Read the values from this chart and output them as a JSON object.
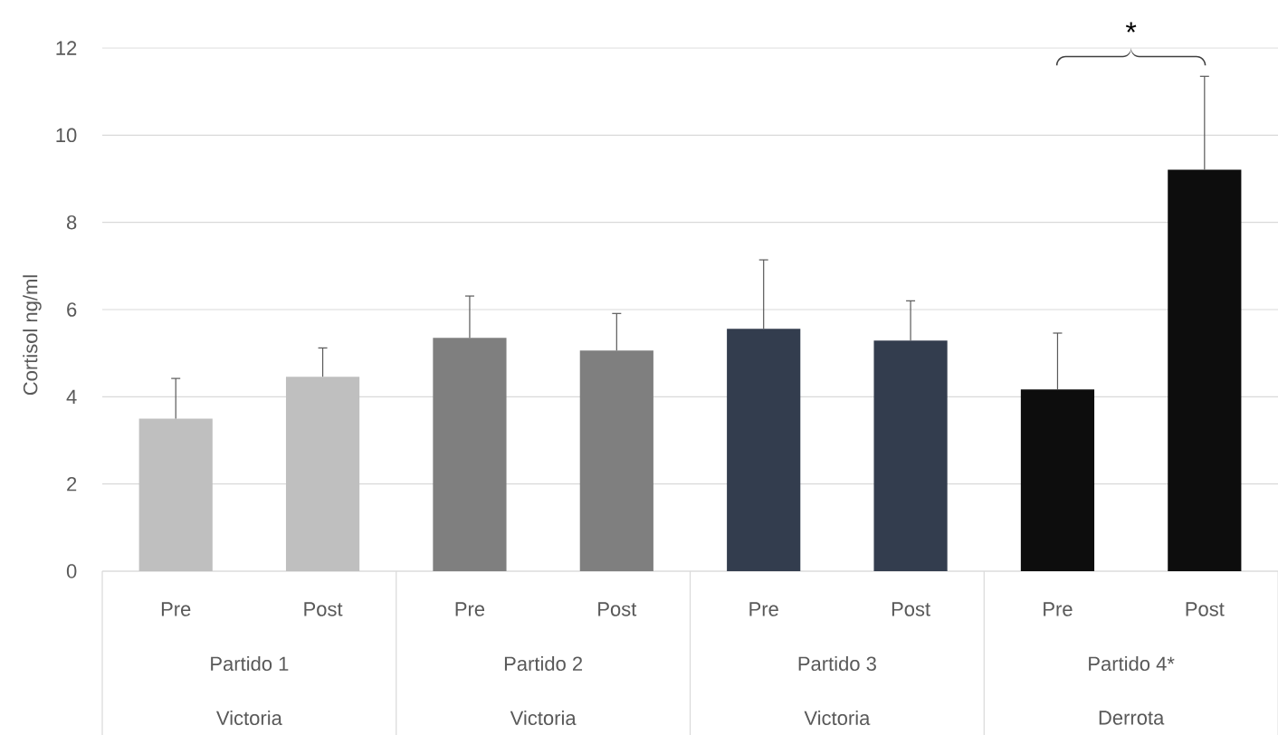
{
  "chart_data": {
    "type": "bar",
    "ylabel": "Cortisol ng/ml",
    "categories": [
      "Pre",
      "Post",
      "Pre",
      "Post",
      "Pre",
      "Post",
      "Pre",
      "Post"
    ],
    "values": [
      3.5,
      4.46,
      5.35,
      5.06,
      5.56,
      5.29,
      4.17,
      9.21
    ],
    "errors": [
      [
        3.5,
        4.42
      ],
      [
        4.46,
        5.12
      ],
      [
        5.35,
        6.31
      ],
      [
        5.06,
        5.91
      ],
      [
        5.56,
        7.14
      ],
      [
        5.29,
        6.2
      ],
      [
        4.17,
        5.46
      ],
      [
        9.21,
        11.35
      ]
    ],
    "colors": [
      "#bfbfbf",
      "#bfbfbf",
      "#7f7f7f",
      "#7f7f7f",
      "#333d4e",
      "#333d4e",
      "#0d0d0d",
      "#0d0d0d"
    ],
    "ylim": [
      0,
      12
    ],
    "yticks": [
      0,
      2,
      4,
      6,
      8,
      10,
      12
    ],
    "grid": "y",
    "annotations": [
      "Partido 1",
      "Victoria",
      "Partido 2",
      "Victoria",
      "Partido 3",
      "Victoria",
      "Partido 4*",
      "Derrota",
      "*"
    ]
  }
}
